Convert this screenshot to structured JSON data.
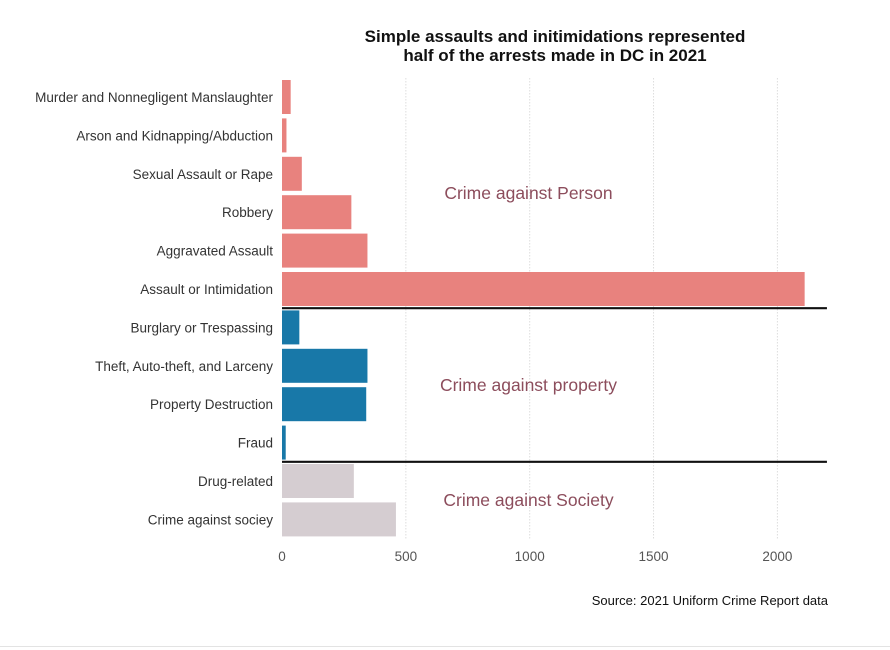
{
  "chart_data": {
    "type": "bar",
    "orientation": "horizontal",
    "title_lines": [
      "Simple assaults and initimidations represented",
      "half of the arrests made in DC in 2021"
    ],
    "source": "Source: 2021 Uniform Crime Report data",
    "xlim": [
      0,
      2200
    ],
    "x_ticks": [
      0,
      500,
      1000,
      1500,
      2000
    ],
    "grid": "vertical",
    "categories": [
      "Murder and Nonnegligent Manslaughter",
      "Arson and Kidnapping/Abduction",
      "Sexual Assault or Rape",
      "Robbery",
      "Aggravated Assault",
      "Assault or Intimidation",
      "Burglary or Trespassing",
      "Theft, Auto-theft, and Larceny",
      "Property Destruction",
      "Fraud",
      "Drug-related",
      "Crime against sociey"
    ],
    "values": [
      35,
      18,
      80,
      280,
      345,
      2110,
      70,
      345,
      340,
      15,
      290,
      460
    ],
    "groups": [
      {
        "label": "Crime against Person",
        "members": [
          "Murder and Nonnegligent Manslaughter",
          "Arson and Kidnapping/Abduction",
          "Sexual Assault or Rape",
          "Robbery",
          "Aggravated Assault",
          "Assault or Intimidation"
        ],
        "color": "#e8827e"
      },
      {
        "label": "Crime against property",
        "members": [
          "Burglary or Trespassing",
          "Theft, Auto-theft, and Larceny",
          "Property Destruction",
          "Fraud"
        ],
        "color": "#1878a8"
      },
      {
        "label": "Crime against Society",
        "members": [
          "Drug-related",
          "Crime against sociey"
        ],
        "color": "#d5cdd1"
      }
    ],
    "colors": {
      "group_label": "#8c4d5c",
      "axis_text": "#555555",
      "category_text": "#333333",
      "grid": "#dddddd",
      "separator": "#111111"
    }
  }
}
